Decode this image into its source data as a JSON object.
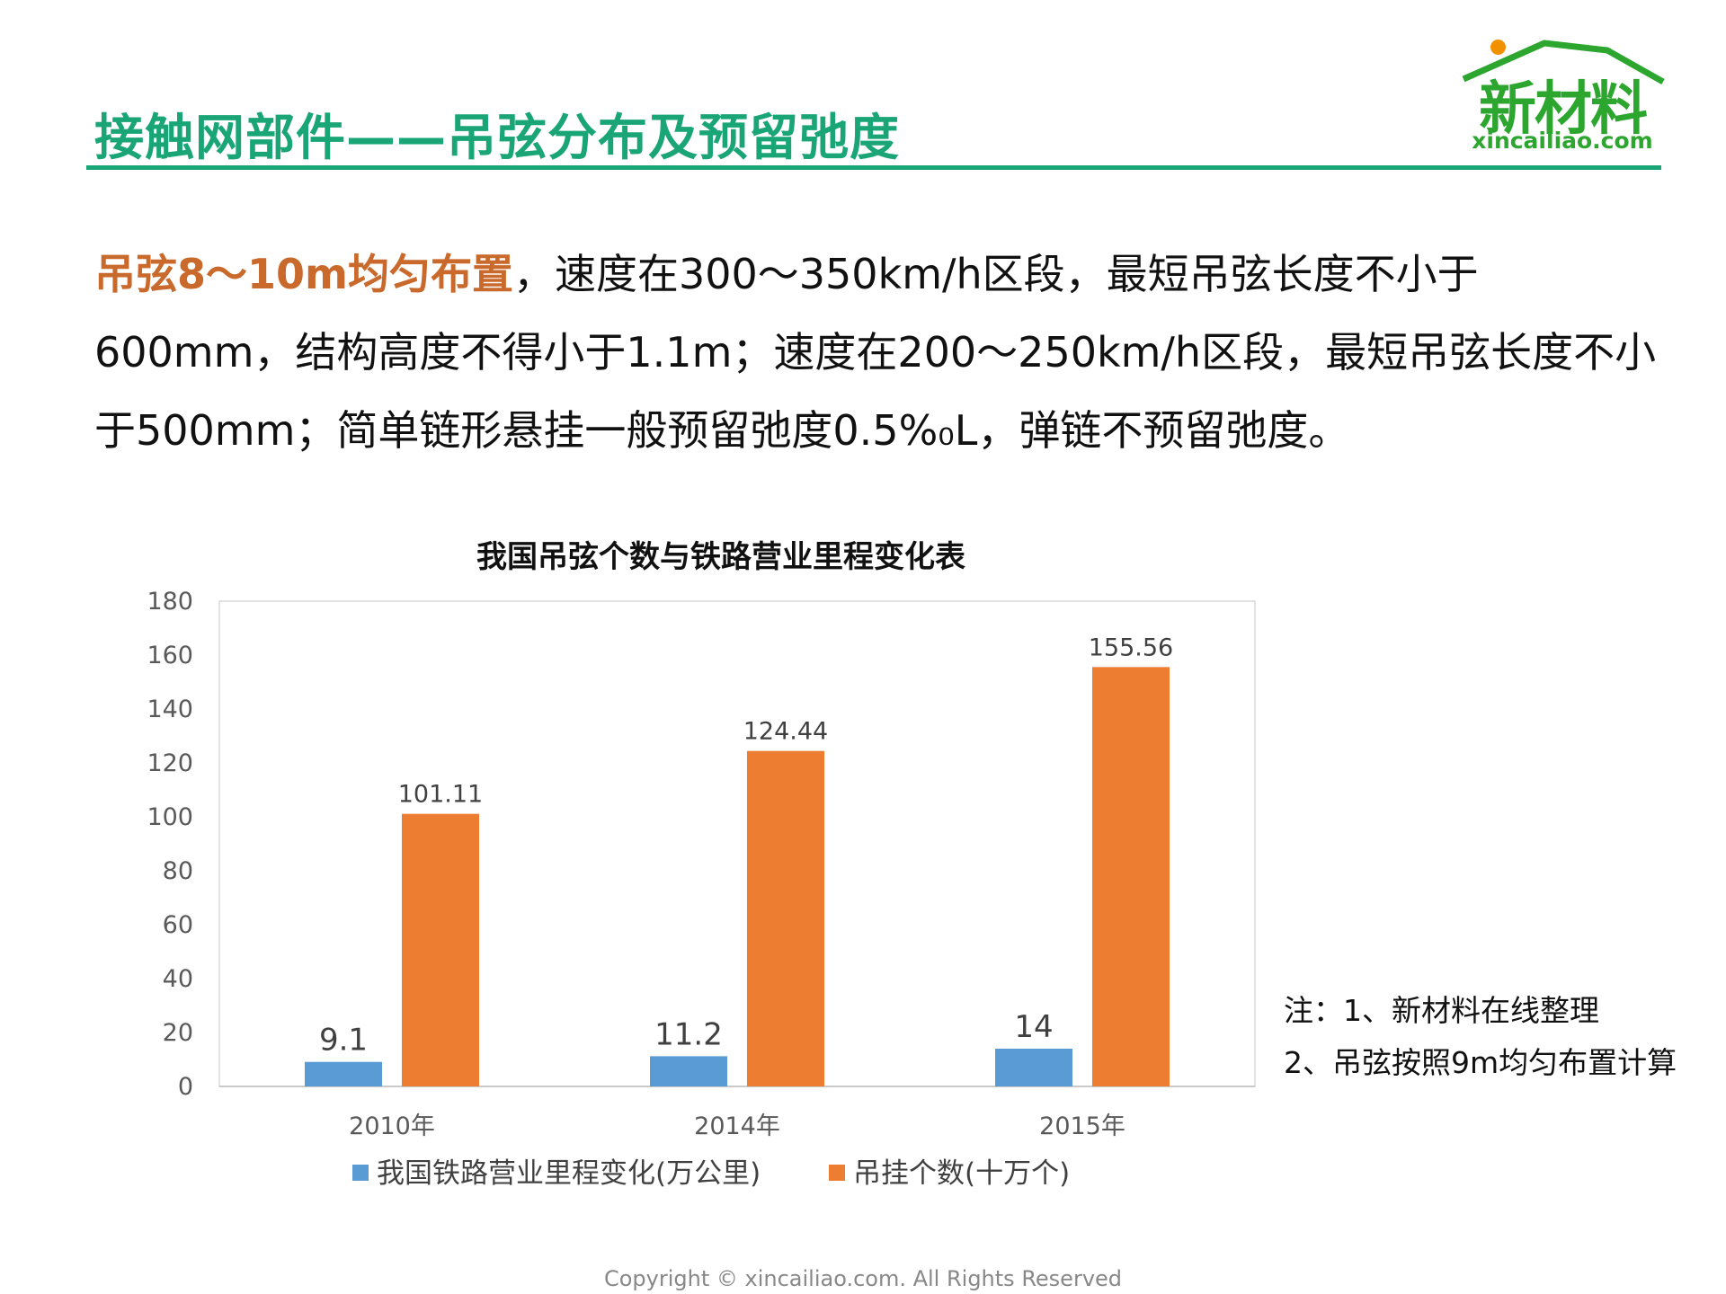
{
  "header": {
    "title": "接触网部件——吊弦分布及预留弛度"
  },
  "logo": {
    "brand": "新材料",
    "url": "xincailiao.com"
  },
  "body": {
    "highlight": "吊弦8～10m均匀布置",
    "text": "，速度在300～350km/h区段，最短吊弦长度不小于600mm，结构高度不得小于1.1m；速度在200～250km/h区段，最短吊弦长度不小于500mm；简单链形悬挂一般预留弛度0.5%₀L，弹链不预留弛度。"
  },
  "notes": {
    "line1": "注：1、新材料在线整理",
    "line2": "2、吊弦按照9m均匀布置计算"
  },
  "footer": {
    "copyright": "Copyright © xincailiao.com. All Rights Reserved"
  },
  "colors": {
    "accent_green": "#1aa577",
    "highlight_orange": "#c9692b",
    "series_blue": "#5b9bd5",
    "series_orange": "#ed7d31"
  },
  "chart_data": {
    "type": "bar",
    "title": "我国吊弦个数与铁路营业里程变化表",
    "categories": [
      "2010年",
      "2014年",
      "2015年"
    ],
    "series": [
      {
        "name": "我国铁路营业里程变化(万公里)",
        "values": [
          9.1,
          11.2,
          14
        ],
        "labels": [
          "9.1",
          "11.2",
          "14"
        ],
        "color": "#5b9bd5"
      },
      {
        "name": "吊挂个数(十万个)",
        "values": [
          101.11,
          124.44,
          155.56
        ],
        "labels": [
          "101.11",
          "124.44",
          "155.56"
        ],
        "color": "#ed7d31"
      }
    ],
    "ylim": [
      0,
      180
    ],
    "yticks": [
      0,
      20,
      40,
      60,
      80,
      100,
      120,
      140,
      160,
      180
    ],
    "grid": false,
    "legend": "bottom"
  }
}
